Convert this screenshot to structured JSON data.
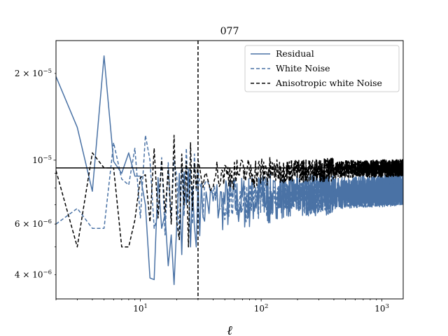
{
  "chart_data": {
    "type": "line",
    "title": "077",
    "xlabel": "ℓ",
    "ylabel": "",
    "xscale": "log",
    "yscale": "log",
    "xlim": [
      2,
      1500
    ],
    "ylim": [
      3.3e-06,
      2.6e-05
    ],
    "grid": false,
    "legend": "top-right",
    "x_ticks": [
      {
        "value": 10,
        "base": "10",
        "exp": "1"
      },
      {
        "value": 100,
        "base": "10",
        "exp": "2"
      },
      {
        "value": 1000,
        "base": "10",
        "exp": "3"
      }
    ],
    "y_ticks": [
      {
        "value": 4e-06,
        "mant": "4 × 10",
        "exp": "−6"
      },
      {
        "value": 6e-06,
        "mant": "6 × 10",
        "exp": "−6"
      },
      {
        "value": 1e-05,
        "mant": "10",
        "exp": "−5"
      },
      {
        "value": 2e-05,
        "mant": "2 × 10",
        "exp": "−5"
      }
    ],
    "vertical_line": {
      "x": 30,
      "color": "#000000",
      "style": "dashed"
    },
    "horizontal_line": {
      "y": 9.4e-06,
      "color": "#000000",
      "style": "solid"
    },
    "series": [
      {
        "name": "Residual",
        "color": "#4a72a5",
        "style": "solid",
        "x": [
          2,
          3,
          4,
          5,
          6,
          7,
          8,
          9,
          10,
          11,
          12,
          13,
          14,
          15,
          16,
          17,
          18,
          19,
          20,
          21,
          22,
          23,
          24,
          25,
          26,
          27,
          28,
          29,
          30
        ],
        "y": [
          1.95e-05,
          1.3e-05,
          7.8e-06,
          2.3e-05,
          9.9e-06,
          9e-06,
          1.06e-05,
          8.8e-06,
          8.8e-06,
          7e-06,
          3.9e-06,
          3.85e-06,
          8.7e-06,
          5.8e-06,
          6.5e-06,
          4.3e-06,
          5.5e-06,
          3.7e-06,
          6e-06,
          9e-06,
          4.7e-06,
          9.1e-06,
          7e-06,
          9.3e-06,
          5e-06,
          8.1e-06,
          5.9e-06,
          5e-06,
          8.5e-06
        ],
        "trend_x": [
          30,
          60,
          100,
          200,
          500,
          1000,
          1500
        ],
        "trend_y": [
          7e-06,
          7.2e-06,
          7.4e-06,
          7.6e-06,
          7.8e-06,
          7.9e-06,
          8e-06
        ],
        "scatter_factor": [
          0.78,
          1.22
        ]
      },
      {
        "name": "White Noise",
        "color": "#4a72a5",
        "style": "dashed",
        "x": [
          2,
          3,
          4,
          5,
          6,
          7,
          8,
          9,
          10,
          11,
          12,
          13,
          14,
          15,
          16,
          17,
          18,
          19,
          20,
          21,
          22,
          23,
          24,
          25,
          26,
          27,
          28,
          29,
          30
        ],
        "y": [
          6e-06,
          6.8e-06,
          5.8e-06,
          5.8e-06,
          1.15e-05,
          8.6e-06,
          8.2e-06,
          1.1e-05,
          6.3e-06,
          1.22e-05,
          1e-05,
          5.8e-06,
          6.5e-06,
          1.02e-05,
          5.5e-06,
          9.8e-06,
          6.2e-06,
          1e-05,
          8.8e-06,
          5.3e-06,
          9.4e-06,
          6.4e-06,
          1.1e-05,
          7.2e-06,
          9.3e-06,
          6e-06,
          1.05e-05,
          7.8e-06,
          9.2e-06
        ],
        "trend_x": [
          30,
          60,
          100,
          200,
          500,
          1000,
          1500
        ],
        "trend_y": [
          7e-06,
          7.1e-06,
          7.2e-06,
          7.3e-06,
          7.4e-06,
          7.5e-06,
          7.6e-06
        ],
        "scatter_factor": [
          0.85,
          1.22
        ]
      },
      {
        "name": "Anisotropic white Noise",
        "color": "#000000",
        "style": "dashed",
        "x": [
          2,
          3,
          4,
          5,
          6,
          7,
          8,
          9,
          10,
          11,
          12,
          13,
          14,
          15,
          16,
          17,
          18,
          19,
          20,
          21,
          22,
          23,
          24,
          25,
          26,
          27,
          28,
          29,
          30
        ],
        "y": [
          9.2e-06,
          5e-06,
          1.06e-05,
          9.4e-06,
          9.4e-06,
          5e-06,
          5e-06,
          6.2e-06,
          8.7e-06,
          8.9e-06,
          6.1e-06,
          1.1e-05,
          6.3e-06,
          1e-05,
          6.6e-06,
          9.3e-06,
          6e-06,
          1.22e-05,
          6.1e-06,
          5.3e-06,
          1.05e-05,
          7e-06,
          9.9e-06,
          5e-06,
          1.15e-05,
          6.7e-06,
          9.8e-06,
          8e-06,
          1e-05
        ],
        "trend_x": [
          30,
          60,
          100,
          200,
          500,
          1000,
          1500
        ],
        "trend_y": [
          8.8e-06,
          9e-06,
          9.1e-06,
          9.2e-06,
          9.3e-06,
          9.35e-06,
          9.4e-06
        ],
        "scatter_factor": [
          0.88,
          1.13
        ]
      }
    ]
  }
}
